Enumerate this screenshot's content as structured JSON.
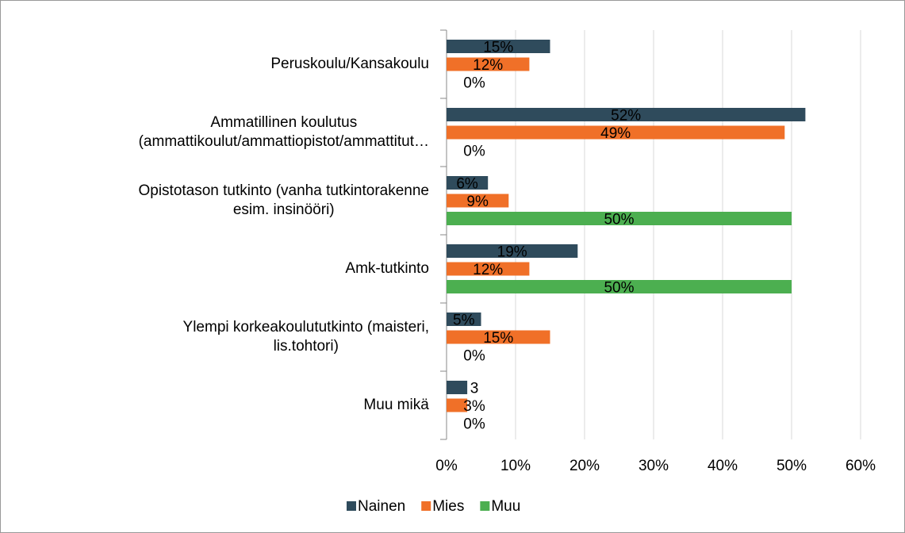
{
  "chart_data": {
    "type": "bar",
    "orientation": "horizontal",
    "categories": [
      "Peruskoulu/Kansakoulu",
      "Ammatillinen koulutus\n(ammattikoulut/ammattiopistot/ammattitut…",
      "Opistotason tutkinto (vanha tutkintorakenne\nesim. insinööri)",
      "Amk-tutkinto",
      "Ylempi korkeakoulututkinto (maisteri,\nlis.tohtori)",
      "Muu mikä"
    ],
    "series": [
      {
        "name": "Nainen",
        "color": "#2f4b5c",
        "label_color": "#ffffff",
        "values": [
          15,
          52,
          6,
          19,
          5,
          3
        ],
        "value_labels": [
          "15%",
          "52%",
          "6%",
          "19%",
          "5%",
          "3"
        ]
      },
      {
        "name": "Mies",
        "color": "#f07028",
        "label_color": "#000000",
        "values": [
          12,
          49,
          9,
          12,
          15,
          3
        ],
        "value_labels": [
          "12%",
          "49%",
          "9%",
          "12%",
          "15%",
          "3%"
        ]
      },
      {
        "name": "Muu",
        "color": "#4caf50",
        "label_color": "#000000",
        "values": [
          0,
          0,
          50,
          50,
          0,
          0
        ],
        "value_labels": [
          "0%",
          "0%",
          "50%",
          "50%",
          "0%",
          "0%"
        ]
      }
    ],
    "xlim": [
      0,
      60
    ],
    "xticks": [
      {
        "value": 0,
        "label": "0%"
      },
      {
        "value": 10,
        "label": "10%"
      },
      {
        "value": 20,
        "label": "20%"
      },
      {
        "value": 30,
        "label": "30%"
      },
      {
        "value": 40,
        "label": "40%"
      },
      {
        "value": 50,
        "label": "50%"
      },
      {
        "value": 60,
        "label": "60%"
      }
    ],
    "grid": true,
    "legend": "bottom"
  }
}
